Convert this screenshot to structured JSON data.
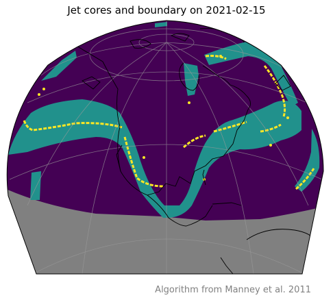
{
  "title": "Jet cores and boundary on 2021-02-15",
  "credit": "Algorithm from Manney et al. 2011",
  "colors": {
    "background_field": "#440154",
    "jet_region": "#21918c",
    "jet_core": "#fde725",
    "below_domain": "#808080",
    "coastline": "#000000",
    "gridline": "#9a9a9a",
    "credit_text": "#808080"
  },
  "legend": []
}
